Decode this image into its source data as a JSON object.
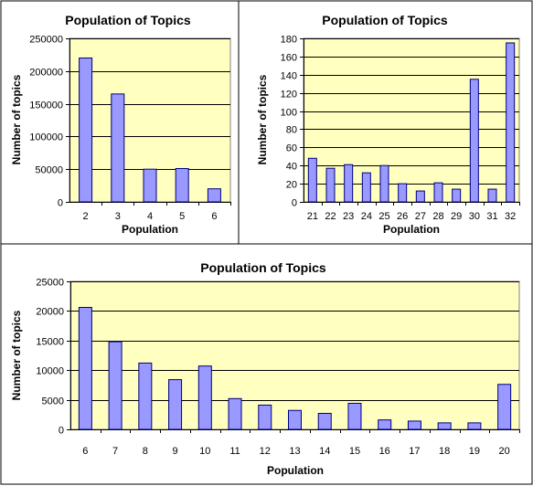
{
  "charts": [
    {
      "id": "top-left",
      "chart_data": {
        "type": "bar",
        "title": "Population of Topics",
        "xlabel": "Population",
        "ylabel": "Number of topics",
        "categories": [
          "2",
          "3",
          "4",
          "5",
          "6"
        ],
        "values": [
          220000,
          165000,
          50000,
          51000,
          20000
        ],
        "ylim": [
          0,
          250000
        ],
        "ystep": 50000,
        "grid": true,
        "legend": "none"
      }
    },
    {
      "id": "top-right",
      "chart_data": {
        "type": "bar",
        "title": "Population of Topics",
        "xlabel": "Population",
        "ylabel": "Number of topics",
        "categories": [
          "21",
          "22",
          "23",
          "24",
          "25",
          "26",
          "27",
          "28",
          "29",
          "30",
          "31",
          "32"
        ],
        "values": [
          48,
          37,
          41,
          32,
          40,
          20,
          12,
          21,
          14,
          135,
          14,
          175
        ],
        "ylim": [
          0,
          180
        ],
        "ystep": 20,
        "grid": true,
        "legend": "none"
      }
    },
    {
      "id": "bottom",
      "chart_data": {
        "type": "bar",
        "title": "Population of Topics",
        "xlabel": "Population",
        "ylabel": "Number of topics",
        "categories": [
          "6",
          "7",
          "8",
          "9",
          "10",
          "11",
          "12",
          "13",
          "14",
          "15",
          "16",
          "17",
          "18",
          "19",
          "20"
        ],
        "values": [
          20600,
          14800,
          11200,
          8400,
          10700,
          5200,
          4100,
          3200,
          2700,
          4400,
          1600,
          1400,
          1100,
          1100,
          7600
        ],
        "ylim": [
          0,
          25000
        ],
        "ystep": 5000,
        "grid": true,
        "legend": "none"
      }
    }
  ],
  "colors": {
    "plot_bg": "#FFFFC0",
    "bar_fill": "#9999FF",
    "bar_stroke": "#000080",
    "border": "#000000",
    "gridline": "#000000",
    "page_bg": "#FFFFFF"
  }
}
